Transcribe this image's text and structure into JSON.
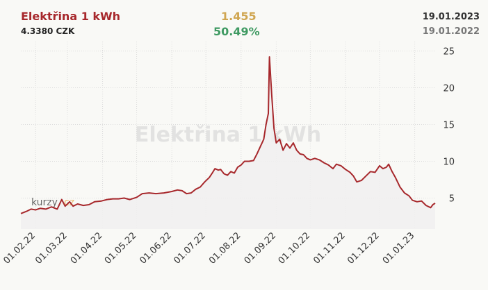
{
  "header": {
    "title": "Elektřina 1 kWh",
    "price": "4.3380 CZK",
    "change_abs": "1.455",
    "change_pct": "50.49%",
    "date_current": "19.01.2023",
    "date_prev": "19.01.2022"
  },
  "watermark": {
    "text": "Elektřina 1 kWh",
    "logo_text": "kurzy",
    "logo_accent": "cz"
  },
  "colors": {
    "line": "#a7282c",
    "area": "#f1f0f0",
    "grid": "#dcdcdc",
    "title": "#a7282c",
    "change_abs": "#d0a651",
    "change_pct": "#3f9a62"
  },
  "chart_data": {
    "type": "area",
    "ylim": [
      0,
      25
    ],
    "yticks": [
      5,
      10,
      15,
      20,
      25
    ],
    "xticks": [
      "01.02.22",
      "01.03.22",
      "01.04.22",
      "01.05.22",
      "01.06.22",
      "01.07.22",
      "01.08.22",
      "01.09.22",
      "01.10.22",
      "01.11.22",
      "01.12.22",
      "01.01.23"
    ],
    "grid": true,
    "series": [
      {
        "points": [
          [
            "2022-01-19",
            2.9
          ],
          [
            "2022-01-24",
            3.2
          ],
          [
            "2022-01-28",
            3.5
          ],
          [
            "2022-02-01",
            3.4
          ],
          [
            "2022-02-05",
            3.6
          ],
          [
            "2022-02-10",
            3.5
          ],
          [
            "2022-02-15",
            3.8
          ],
          [
            "2022-02-20",
            3.5
          ],
          [
            "2022-02-24",
            4.8
          ],
          [
            "2022-02-27",
            3.9
          ],
          [
            "2022-03-03",
            4.5
          ],
          [
            "2022-03-06",
            3.9
          ],
          [
            "2022-03-10",
            4.2
          ],
          [
            "2022-03-15",
            4.0
          ],
          [
            "2022-03-20",
            4.1
          ],
          [
            "2022-03-25",
            4.5
          ],
          [
            "2022-03-31",
            4.6
          ],
          [
            "2022-04-05",
            4.8
          ],
          [
            "2022-04-10",
            4.9
          ],
          [
            "2022-04-15",
            4.9
          ],
          [
            "2022-04-20",
            5.0
          ],
          [
            "2022-04-25",
            4.8
          ],
          [
            "2022-05-01",
            5.1
          ],
          [
            "2022-05-06",
            5.6
          ],
          [
            "2022-05-12",
            5.7
          ],
          [
            "2022-05-18",
            5.6
          ],
          [
            "2022-05-25",
            5.7
          ],
          [
            "2022-06-01",
            5.9
          ],
          [
            "2022-06-06",
            6.1
          ],
          [
            "2022-06-10",
            6.0
          ],
          [
            "2022-06-14",
            5.6
          ],
          [
            "2022-06-18",
            5.7
          ],
          [
            "2022-06-22",
            6.2
          ],
          [
            "2022-06-26",
            6.5
          ],
          [
            "2022-06-30",
            7.2
          ],
          [
            "2022-07-04",
            7.8
          ],
          [
            "2022-07-07",
            8.5
          ],
          [
            "2022-07-09",
            9.0
          ],
          [
            "2022-07-12",
            8.8
          ],
          [
            "2022-07-14",
            8.9
          ],
          [
            "2022-07-17",
            8.3
          ],
          [
            "2022-07-20",
            8.1
          ],
          [
            "2022-07-23",
            8.6
          ],
          [
            "2022-07-26",
            8.4
          ],
          [
            "2022-07-29",
            9.2
          ],
          [
            "2022-08-01",
            9.5
          ],
          [
            "2022-08-04",
            10.0
          ],
          [
            "2022-08-08",
            10.0
          ],
          [
            "2022-08-12",
            10.1
          ],
          [
            "2022-08-15",
            11.0
          ],
          [
            "2022-08-18",
            12.0
          ],
          [
            "2022-08-21",
            13.0
          ],
          [
            "2022-08-23",
            15.0
          ],
          [
            "2022-08-25",
            16.5
          ],
          [
            "2022-08-26",
            24.2
          ],
          [
            "2022-08-28",
            19.0
          ],
          [
            "2022-08-30",
            14.5
          ],
          [
            "2022-09-01",
            12.5
          ],
          [
            "2022-09-04",
            13.0
          ],
          [
            "2022-09-07",
            11.5
          ],
          [
            "2022-09-10",
            12.4
          ],
          [
            "2022-09-13",
            11.8
          ],
          [
            "2022-09-16",
            12.5
          ],
          [
            "2022-09-19",
            11.5
          ],
          [
            "2022-09-22",
            11.0
          ],
          [
            "2022-09-25",
            10.9
          ],
          [
            "2022-09-28",
            10.4
          ],
          [
            "2022-10-01",
            10.2
          ],
          [
            "2022-10-05",
            10.4
          ],
          [
            "2022-10-09",
            10.2
          ],
          [
            "2022-10-13",
            9.8
          ],
          [
            "2022-10-17",
            9.5
          ],
          [
            "2022-10-21",
            9.0
          ],
          [
            "2022-10-24",
            9.6
          ],
          [
            "2022-10-28",
            9.4
          ],
          [
            "2022-11-01",
            8.9
          ],
          [
            "2022-11-05",
            8.5
          ],
          [
            "2022-11-08",
            8.0
          ],
          [
            "2022-11-11",
            7.2
          ],
          [
            "2022-11-15",
            7.4
          ],
          [
            "2022-11-19",
            8.0
          ],
          [
            "2022-11-23",
            8.6
          ],
          [
            "2022-11-27",
            8.5
          ],
          [
            "2022-12-01",
            9.4
          ],
          [
            "2022-12-04",
            9.0
          ],
          [
            "2022-12-07",
            9.2
          ],
          [
            "2022-12-09",
            9.6
          ],
          [
            "2022-12-12",
            8.6
          ],
          [
            "2022-12-15",
            7.8
          ],
          [
            "2022-12-19",
            6.5
          ],
          [
            "2022-12-23",
            5.7
          ],
          [
            "2022-12-27",
            5.3
          ],
          [
            "2022-12-30",
            4.7
          ],
          [
            "2023-01-03",
            4.5
          ],
          [
            "2023-01-07",
            4.6
          ],
          [
            "2023-01-11",
            4.0
          ],
          [
            "2023-01-15",
            3.7
          ],
          [
            "2023-01-17",
            4.1
          ],
          [
            "2023-01-19",
            4.3
          ]
        ]
      }
    ]
  }
}
